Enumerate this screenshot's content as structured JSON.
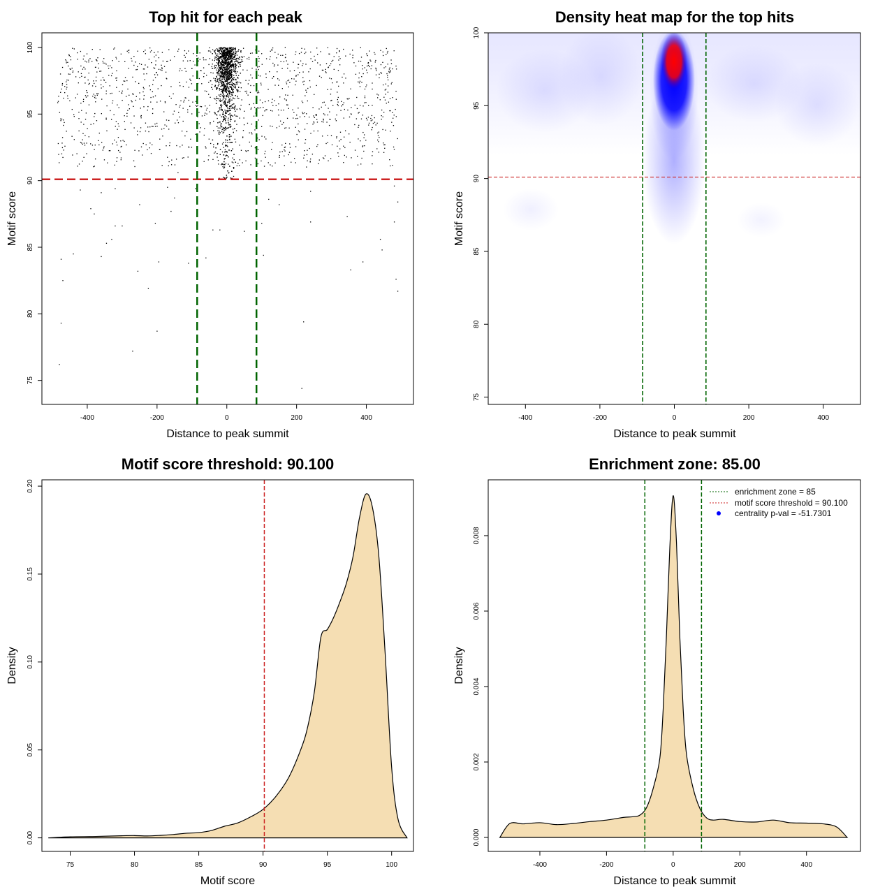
{
  "chart_data": [
    {
      "id": "scatter",
      "type": "scatter",
      "title": "Top hit for each peak",
      "xlabel": "Distance to peak summit",
      "ylabel": "Motif score",
      "xlim": [
        -530,
        535
      ],
      "ylim": [
        73.2,
        101.1
      ],
      "xticks": [
        -400,
        -200,
        0,
        200,
        400
      ],
      "yticks": [
        75,
        80,
        85,
        90,
        95,
        100
      ],
      "threshold": 90.1,
      "zone": [
        -85,
        85
      ],
      "threshold_color": "#cc2222",
      "zone_color": "#006400",
      "point_color": "#000000",
      "points": [
        [
          -480,
          76.2
        ],
        [
          -475,
          79.3
        ],
        [
          -470,
          82.5
        ],
        [
          -475,
          84.1
        ],
        [
          -440,
          84.5
        ],
        [
          -360,
          84.3
        ],
        [
          -345,
          85.3
        ],
        [
          -330,
          85.6
        ],
        [
          -320,
          86.6
        ],
        [
          -300,
          86.6
        ],
        [
          -270,
          77.2
        ],
        [
          -255,
          83.2
        ],
        [
          -225,
          81.9
        ],
        [
          -200,
          78.7
        ],
        [
          -195,
          83.9
        ],
        [
          -110,
          83.8
        ],
        [
          -60,
          84.2
        ],
        [
          -40,
          86.3
        ],
        [
          -20,
          86.3
        ],
        [
          50,
          86.2
        ],
        [
          105,
          84.4
        ],
        [
          220,
          79.4
        ],
        [
          215,
          74.4
        ],
        [
          355,
          83.3
        ],
        [
          390,
          83.9
        ],
        [
          440,
          85.6
        ],
        [
          445,
          84.8
        ],
        [
          480,
          86.9
        ],
        [
          485,
          82.6
        ],
        [
          490,
          81.7
        ],
        [
          490,
          88.4
        ],
        [
          480,
          89.6
        ],
        [
          345,
          87.3
        ],
        [
          240,
          86.9
        ],
        [
          240,
          89.2
        ],
        [
          -390,
          87.9
        ],
        [
          -380,
          87.5
        ],
        [
          -360,
          89.1
        ],
        [
          -250,
          88.2
        ],
        [
          -160,
          87.7
        ],
        [
          -150,
          88.7
        ],
        [
          -420,
          89.3
        ],
        [
          150,
          88.2
        ],
        [
          -140,
          90.6
        ],
        [
          -90,
          89.4
        ],
        [
          100,
          86.8
        ],
        [
          120,
          88.6
        ],
        [
          -205,
          86.8
        ],
        [
          -320,
          89.4
        ],
        [
          -170,
          89.5
        ]
      ]
    },
    {
      "id": "heatmap",
      "type": "heatmap",
      "title": "Density heat map for the top hits",
      "xlabel": "Distance to peak summit",
      "ylabel": "Motif score",
      "xlim": [
        -500,
        500
      ],
      "ylim": [
        74.5,
        100
      ],
      "xticks": [
        -400,
        -200,
        0,
        200,
        400
      ],
      "yticks": [
        75,
        80,
        85,
        90,
        95,
        100
      ],
      "threshold": 90.1,
      "zone": [
        -85,
        85
      ],
      "threshold_color": "#cc2222",
      "zone_color": "#006400",
      "core_color": "#ff0000",
      "mid_color": "#0000ff"
    },
    {
      "id": "score_density",
      "type": "area",
      "title": "Motif score threshold: 90.100",
      "xlabel": "Motif score",
      "ylabel": "Density",
      "xlim": [
        72.8,
        101.7
      ],
      "ylim": [
        -0.0077,
        0.2036
      ],
      "xticks": [
        75,
        80,
        85,
        90,
        95,
        100
      ],
      "yticks": [
        0.0,
        0.05,
        0.1,
        0.15,
        0.2
      ],
      "ytick_labels": [
        "0.00",
        "0.05",
        "0.10",
        "0.15",
        "0.20"
      ],
      "threshold": 90.1,
      "threshold_color": "#cc2222",
      "fill_color": "#f5deb3",
      "x": [
        73.3,
        75,
        77,
        79,
        80,
        81,
        82,
        83,
        84,
        85,
        86,
        87,
        88,
        89,
        90,
        91,
        92,
        93,
        93.5,
        94,
        94.5,
        95,
        95.5,
        96,
        96.5,
        97,
        97.5,
        98,
        98.5,
        99,
        99.5,
        100,
        100.5,
        101.2
      ],
      "values": [
        0.0,
        0.0006,
        0.0008,
        0.0012,
        0.0013,
        0.0011,
        0.0014,
        0.0019,
        0.0026,
        0.003,
        0.0042,
        0.0066,
        0.0084,
        0.0118,
        0.0162,
        0.0236,
        0.0344,
        0.0515,
        0.064,
        0.0835,
        0.1142,
        0.1185,
        0.1255,
        0.1346,
        0.1452,
        0.16,
        0.182,
        0.1955,
        0.1882,
        0.1607,
        0.1045,
        0.0403,
        0.0106,
        0.0
      ]
    },
    {
      "id": "distance_density",
      "type": "area",
      "title": "Enrichment zone: 85.00",
      "xlabel": "Distance to peak summit",
      "ylabel": "Density",
      "xlim": [
        -555,
        562
      ],
      "ylim": [
        -0.00037,
        0.00948
      ],
      "xticks": [
        -400,
        -200,
        0,
        200,
        400
      ],
      "yticks": [
        0.0,
        0.002,
        0.004,
        0.006,
        0.008
      ],
      "ytick_labels": [
        "0.000",
        "0.002",
        "0.004",
        "0.006",
        "0.008"
      ],
      "zone": [
        -85,
        85
      ],
      "zone_color": "#006400",
      "fill_color": "#f5deb3",
      "x": [
        -520,
        -490,
        -450,
        -400,
        -350,
        -300,
        -250,
        -200,
        -150,
        -120,
        -100,
        -80,
        -60,
        -40,
        -30,
        -20,
        -10,
        0,
        10,
        20,
        30,
        40,
        60,
        80,
        100,
        120,
        150,
        200,
        250,
        300,
        350,
        400,
        450,
        490,
        522
      ],
      "values": [
        0.0,
        0.00037,
        0.00036,
        0.00039,
        0.00034,
        0.00037,
        0.00042,
        0.00046,
        0.00053,
        0.00055,
        0.00059,
        0.00079,
        0.0013,
        0.0021,
        0.0034,
        0.0054,
        0.0077,
        0.00906,
        0.0078,
        0.0053,
        0.0034,
        0.0022,
        0.0013,
        0.00077,
        0.00052,
        0.00046,
        0.00048,
        0.00042,
        0.00041,
        0.00046,
        0.00039,
        0.00038,
        0.00036,
        0.00028,
        0.0
      ]
    }
  ],
  "legend": {
    "position": "top-right",
    "entries": [
      {
        "label": "enrichment zone = 85",
        "color": "#006400",
        "style": "dotted"
      },
      {
        "label": "motif score threshold = 90.100",
        "color": "#cc2222",
        "style": "dotted"
      },
      {
        "label": "centrality p-val = -51.7301",
        "color": "#0000ff",
        "style": "point"
      }
    ]
  }
}
